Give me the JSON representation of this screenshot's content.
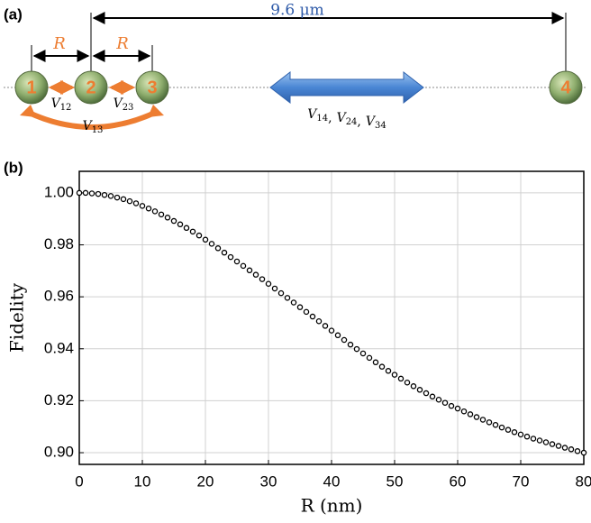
{
  "panel_a": {
    "label": "(a)",
    "distance_label": "9.6 μm",
    "spacing_labels": [
      "R",
      "R"
    ],
    "nodes": [
      "1",
      "2",
      "3",
      "4"
    ],
    "near_couplings": [
      {
        "symbol": "V",
        "sub": "12"
      },
      {
        "symbol": "V",
        "sub": "23"
      },
      {
        "symbol": "V",
        "sub": "13"
      }
    ],
    "far_couplings": {
      "terms": [
        {
          "symbol": "V",
          "sub": "14"
        },
        {
          "symbol": "V",
          "sub": "24"
        },
        {
          "symbol": "V",
          "sub": "34"
        }
      ],
      "separator": ","
    }
  },
  "chart_data": {
    "type": "scatter",
    "panel_label": "(b)",
    "xlabel": "R (nm)",
    "ylabel": "Fidelity",
    "x": [
      0,
      1,
      2,
      3,
      4,
      5,
      6,
      7,
      8,
      9,
      10,
      11,
      12,
      13,
      14,
      15,
      16,
      17,
      18,
      19,
      20,
      21,
      22,
      23,
      24,
      25,
      26,
      27,
      28,
      29,
      30,
      31,
      32,
      33,
      34,
      35,
      36,
      37,
      38,
      39,
      40,
      41,
      42,
      43,
      44,
      45,
      46,
      47,
      48,
      49,
      50,
      51,
      52,
      53,
      54,
      55,
      56,
      57,
      58,
      59,
      60,
      61,
      62,
      63,
      64,
      65,
      66,
      67,
      68,
      69,
      70,
      71,
      72,
      73,
      74,
      75,
      76,
      77,
      78,
      79,
      80
    ],
    "y": [
      1.0,
      1.0,
      0.9998,
      0.9996,
      0.9992,
      0.9988,
      0.9982,
      0.9976,
      0.9968,
      0.996,
      0.995,
      0.994,
      0.9929,
      0.9917,
      0.9905,
      0.9892,
      0.9879,
      0.9865,
      0.9851,
      0.9836,
      0.982,
      0.9804,
      0.9787,
      0.977,
      0.9753,
      0.9736,
      0.9719,
      0.9702,
      0.9685,
      0.9668,
      0.965,
      0.9632,
      0.9614,
      0.9596,
      0.9578,
      0.956,
      0.9542,
      0.9524,
      0.9506,
      0.9488,
      0.947,
      0.9452,
      0.9434,
      0.9416,
      0.9399,
      0.9382,
      0.9365,
      0.9348,
      0.9331,
      0.9315,
      0.93,
      0.9285,
      0.927,
      0.9256,
      0.9242,
      0.9229,
      0.9216,
      0.9204,
      0.9192,
      0.918,
      0.917,
      0.9159,
      0.9148,
      0.9137,
      0.9127,
      0.9117,
      0.9107,
      0.9097,
      0.9088,
      0.9079,
      0.907,
      0.9062,
      0.9054,
      0.9047,
      0.904,
      0.9033,
      0.9026,
      0.9019,
      0.9013,
      0.9006,
      0.9
    ],
    "color": "#000000",
    "xlim": [
      0,
      80
    ],
    "xticks": [
      0,
      10,
      20,
      30,
      40,
      50,
      60,
      70,
      80
    ],
    "ylim": [
      0.8955,
      1.0083
    ],
    "yticks": [
      {
        "value": 0.9,
        "label": "0.90"
      },
      {
        "value": 0.92,
        "label": "0.92"
      },
      {
        "value": 0.94,
        "label": "0.94"
      },
      {
        "value": 0.96,
        "label": "0.96"
      },
      {
        "value": 0.98,
        "label": "0.98"
      },
      {
        "value": 1.0,
        "label": "1.00"
      }
    ],
    "grid": true
  }
}
